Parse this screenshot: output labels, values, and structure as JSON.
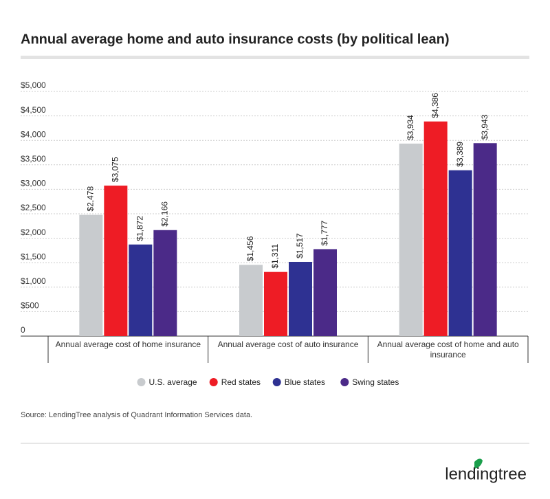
{
  "chart_data": {
    "type": "bar",
    "title": "Annual average home and auto insurance costs (by political lean)",
    "categories": [
      "Annual average cost of home insurance",
      "Annual average cost of auto insurance",
      "Annual average cost of home and auto insurance"
    ],
    "series": [
      {
        "name": "U.S. average",
        "color": "#c8cbce",
        "values": [
          2478,
          1456,
          3934
        ],
        "value_labels": [
          "$2,478",
          "$1,456",
          "$3,934"
        ]
      },
      {
        "name": "Red states",
        "color": "#ee1c25",
        "values": [
          3075,
          1311,
          4386
        ],
        "value_labels": [
          "$3,075",
          "$1,311",
          "$4,386"
        ]
      },
      {
        "name": "Blue states",
        "color": "#2e3192",
        "values": [
          1872,
          1517,
          3389
        ],
        "value_labels": [
          "$1,872",
          "$1,517",
          "$3,389"
        ]
      },
      {
        "name": "Swing states",
        "color": "#4b2a88",
        "values": [
          2166,
          1777,
          3943
        ],
        "value_labels": [
          "$2,166",
          "$1,777",
          "$3,943"
        ]
      }
    ],
    "ylim": [
      0,
      5000
    ],
    "yticks": [
      0,
      {
        "value": 500,
        "label": "$500"
      },
      {
        "value": 1000,
        "label": "$1,000"
      },
      {
        "value": 1500,
        "label": "$1,500"
      },
      {
        "value": 2000,
        "label": "$2,000"
      },
      {
        "value": 2500,
        "label": "$2,500"
      },
      {
        "value": 3000,
        "label": "$3,000"
      },
      {
        "value": 3500,
        "label": "$3,500"
      },
      {
        "value": 4000,
        "label": "$4,000"
      },
      {
        "value": 4500,
        "label": "$4,500"
      },
      {
        "value": 5000,
        "label": "$5,000"
      }
    ],
    "grid": true,
    "legend": "bottom",
    "source": "Source: LendingTree analysis of Quadrant Information Services data.",
    "logo": "lendingtree"
  }
}
